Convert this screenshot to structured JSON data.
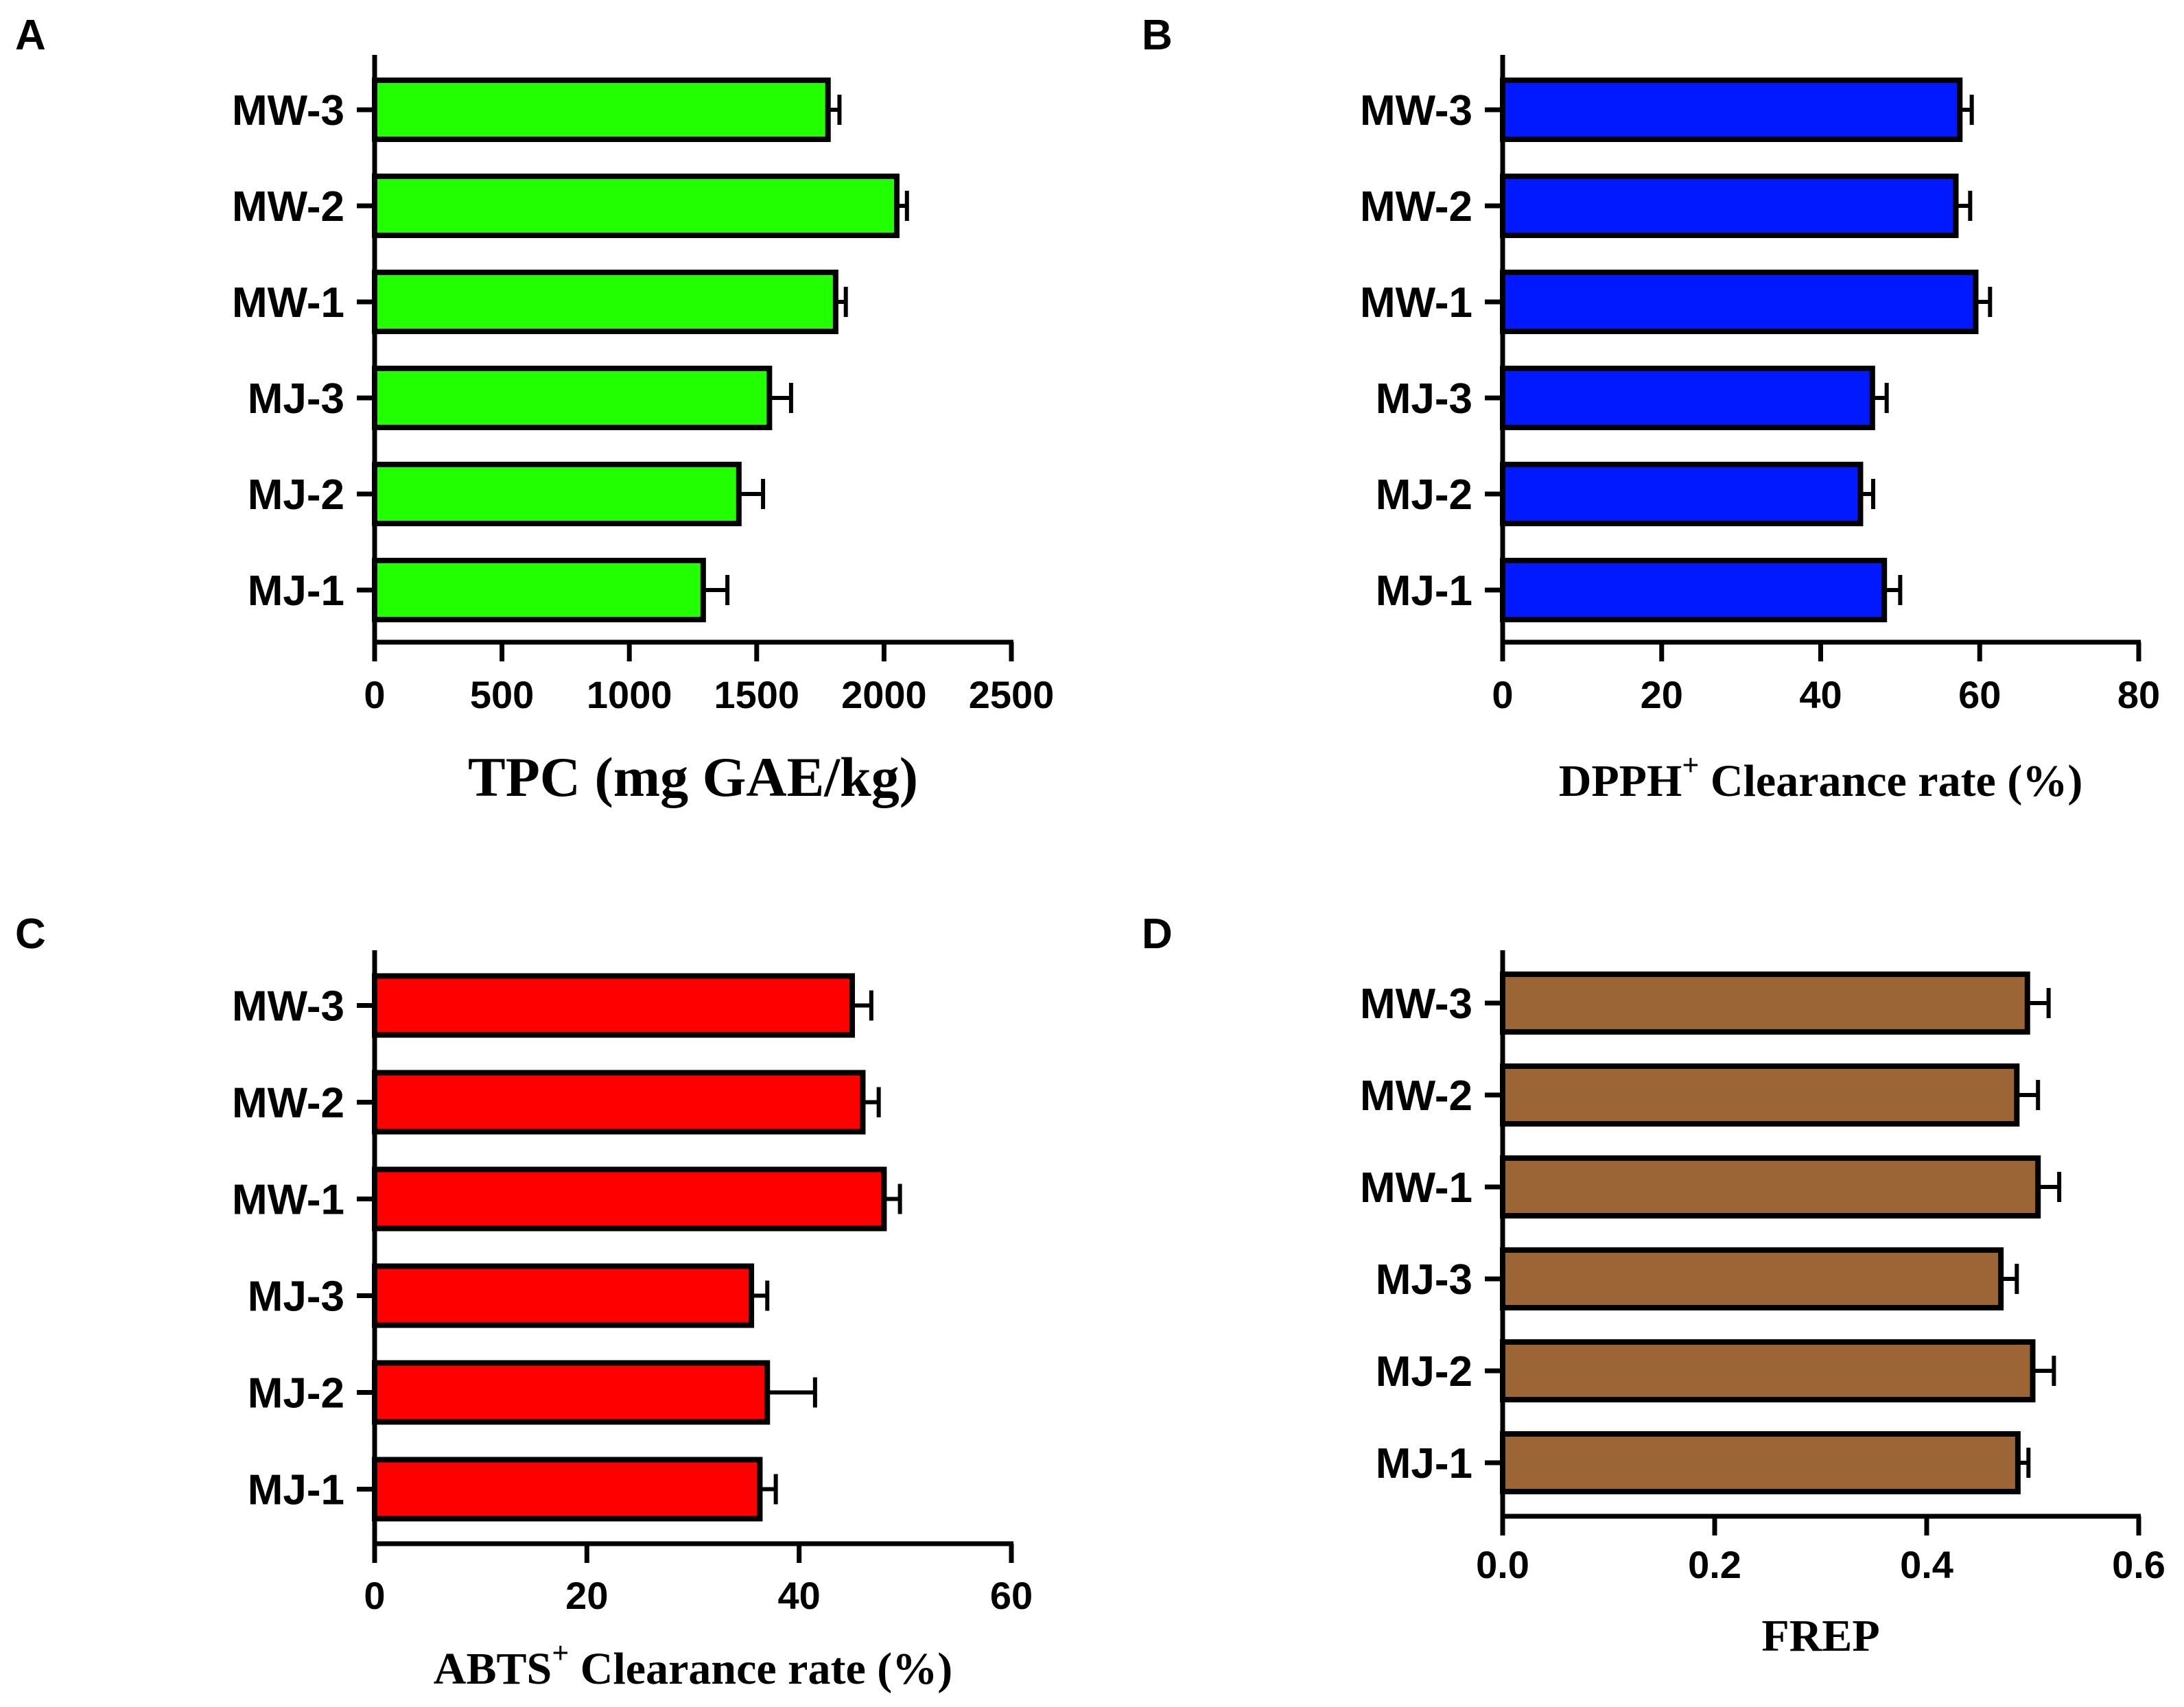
{
  "chart_data": [
    {
      "panel": "A",
      "type": "bar",
      "orientation": "horizontal",
      "categories": [
        "MW-3",
        "MW-2",
        "MW-1",
        "MJ-3",
        "MJ-2",
        "MJ-1"
      ],
      "values": [
        1780,
        2050,
        1810,
        1550,
        1430,
        1290
      ],
      "errors": [
        45,
        40,
        40,
        85,
        95,
        95
      ],
      "xlabel": "TPC (mg GAE/kg)",
      "xlabel_sup": "",
      "xlabel_rest": "",
      "xlim": [
        0,
        2500
      ],
      "ticks": [
        0,
        500,
        1000,
        1500,
        2000,
        2500
      ],
      "tick_labels": [
        "0",
        "500",
        "1000",
        "1500",
        "2000",
        "2500"
      ],
      "color": "#22ff00"
    },
    {
      "panel": "B",
      "type": "bar",
      "orientation": "horizontal",
      "categories": [
        "MW-3",
        "MW-2",
        "MW-1",
        "MJ-3",
        "MJ-2",
        "MJ-1"
      ],
      "values": [
        57.5,
        57.0,
        59.5,
        46.5,
        45.0,
        48.0
      ],
      "errors": [
        1.5,
        1.8,
        1.8,
        1.8,
        1.6,
        2.0
      ],
      "xlabel": "DPPH",
      "xlabel_sup": "+",
      "xlabel_rest": " Clearance rate (%)",
      "xlim": [
        0,
        80
      ],
      "ticks": [
        0,
        20,
        40,
        60,
        80
      ],
      "tick_labels": [
        "0",
        "20",
        "40",
        "60",
        "80"
      ],
      "color": "#0019ff"
    },
    {
      "panel": "C",
      "type": "bar",
      "orientation": "horizontal",
      "categories": [
        "MW-3",
        "MW-2",
        "MW-1",
        "MJ-3",
        "MJ-2",
        "MJ-1"
      ],
      "values": [
        45.0,
        46.0,
        48.0,
        35.5,
        37.0,
        36.3
      ],
      "errors": [
        1.8,
        1.5,
        1.5,
        1.5,
        4.5,
        1.5
      ],
      "xlabel": "ABTS",
      "xlabel_sup": "+",
      "xlabel_rest": " Clearance rate (%)",
      "xlim": [
        0,
        60
      ],
      "ticks": [
        0,
        20,
        40,
        60
      ],
      "tick_labels": [
        "0",
        "20",
        "40",
        "60"
      ],
      "color": "#ff0000"
    },
    {
      "panel": "D",
      "type": "bar",
      "orientation": "horizontal",
      "categories": [
        "MW-3",
        "MW-2",
        "MW-1",
        "MJ-3",
        "MJ-2",
        "MJ-1"
      ],
      "values": [
        0.495,
        0.485,
        0.505,
        0.47,
        0.5,
        0.486
      ],
      "errors": [
        0.02,
        0.02,
        0.02,
        0.015,
        0.02,
        0.01
      ],
      "xlabel": "FREP",
      "xlabel_sup": "",
      "xlabel_rest": "",
      "xlim": [
        0,
        0.6
      ],
      "ticks": [
        0,
        0.2,
        0.4,
        0.6
      ],
      "tick_labels": [
        "0.0",
        "0.2",
        "0.4",
        "0.6"
      ],
      "color": "#9b6535"
    }
  ]
}
